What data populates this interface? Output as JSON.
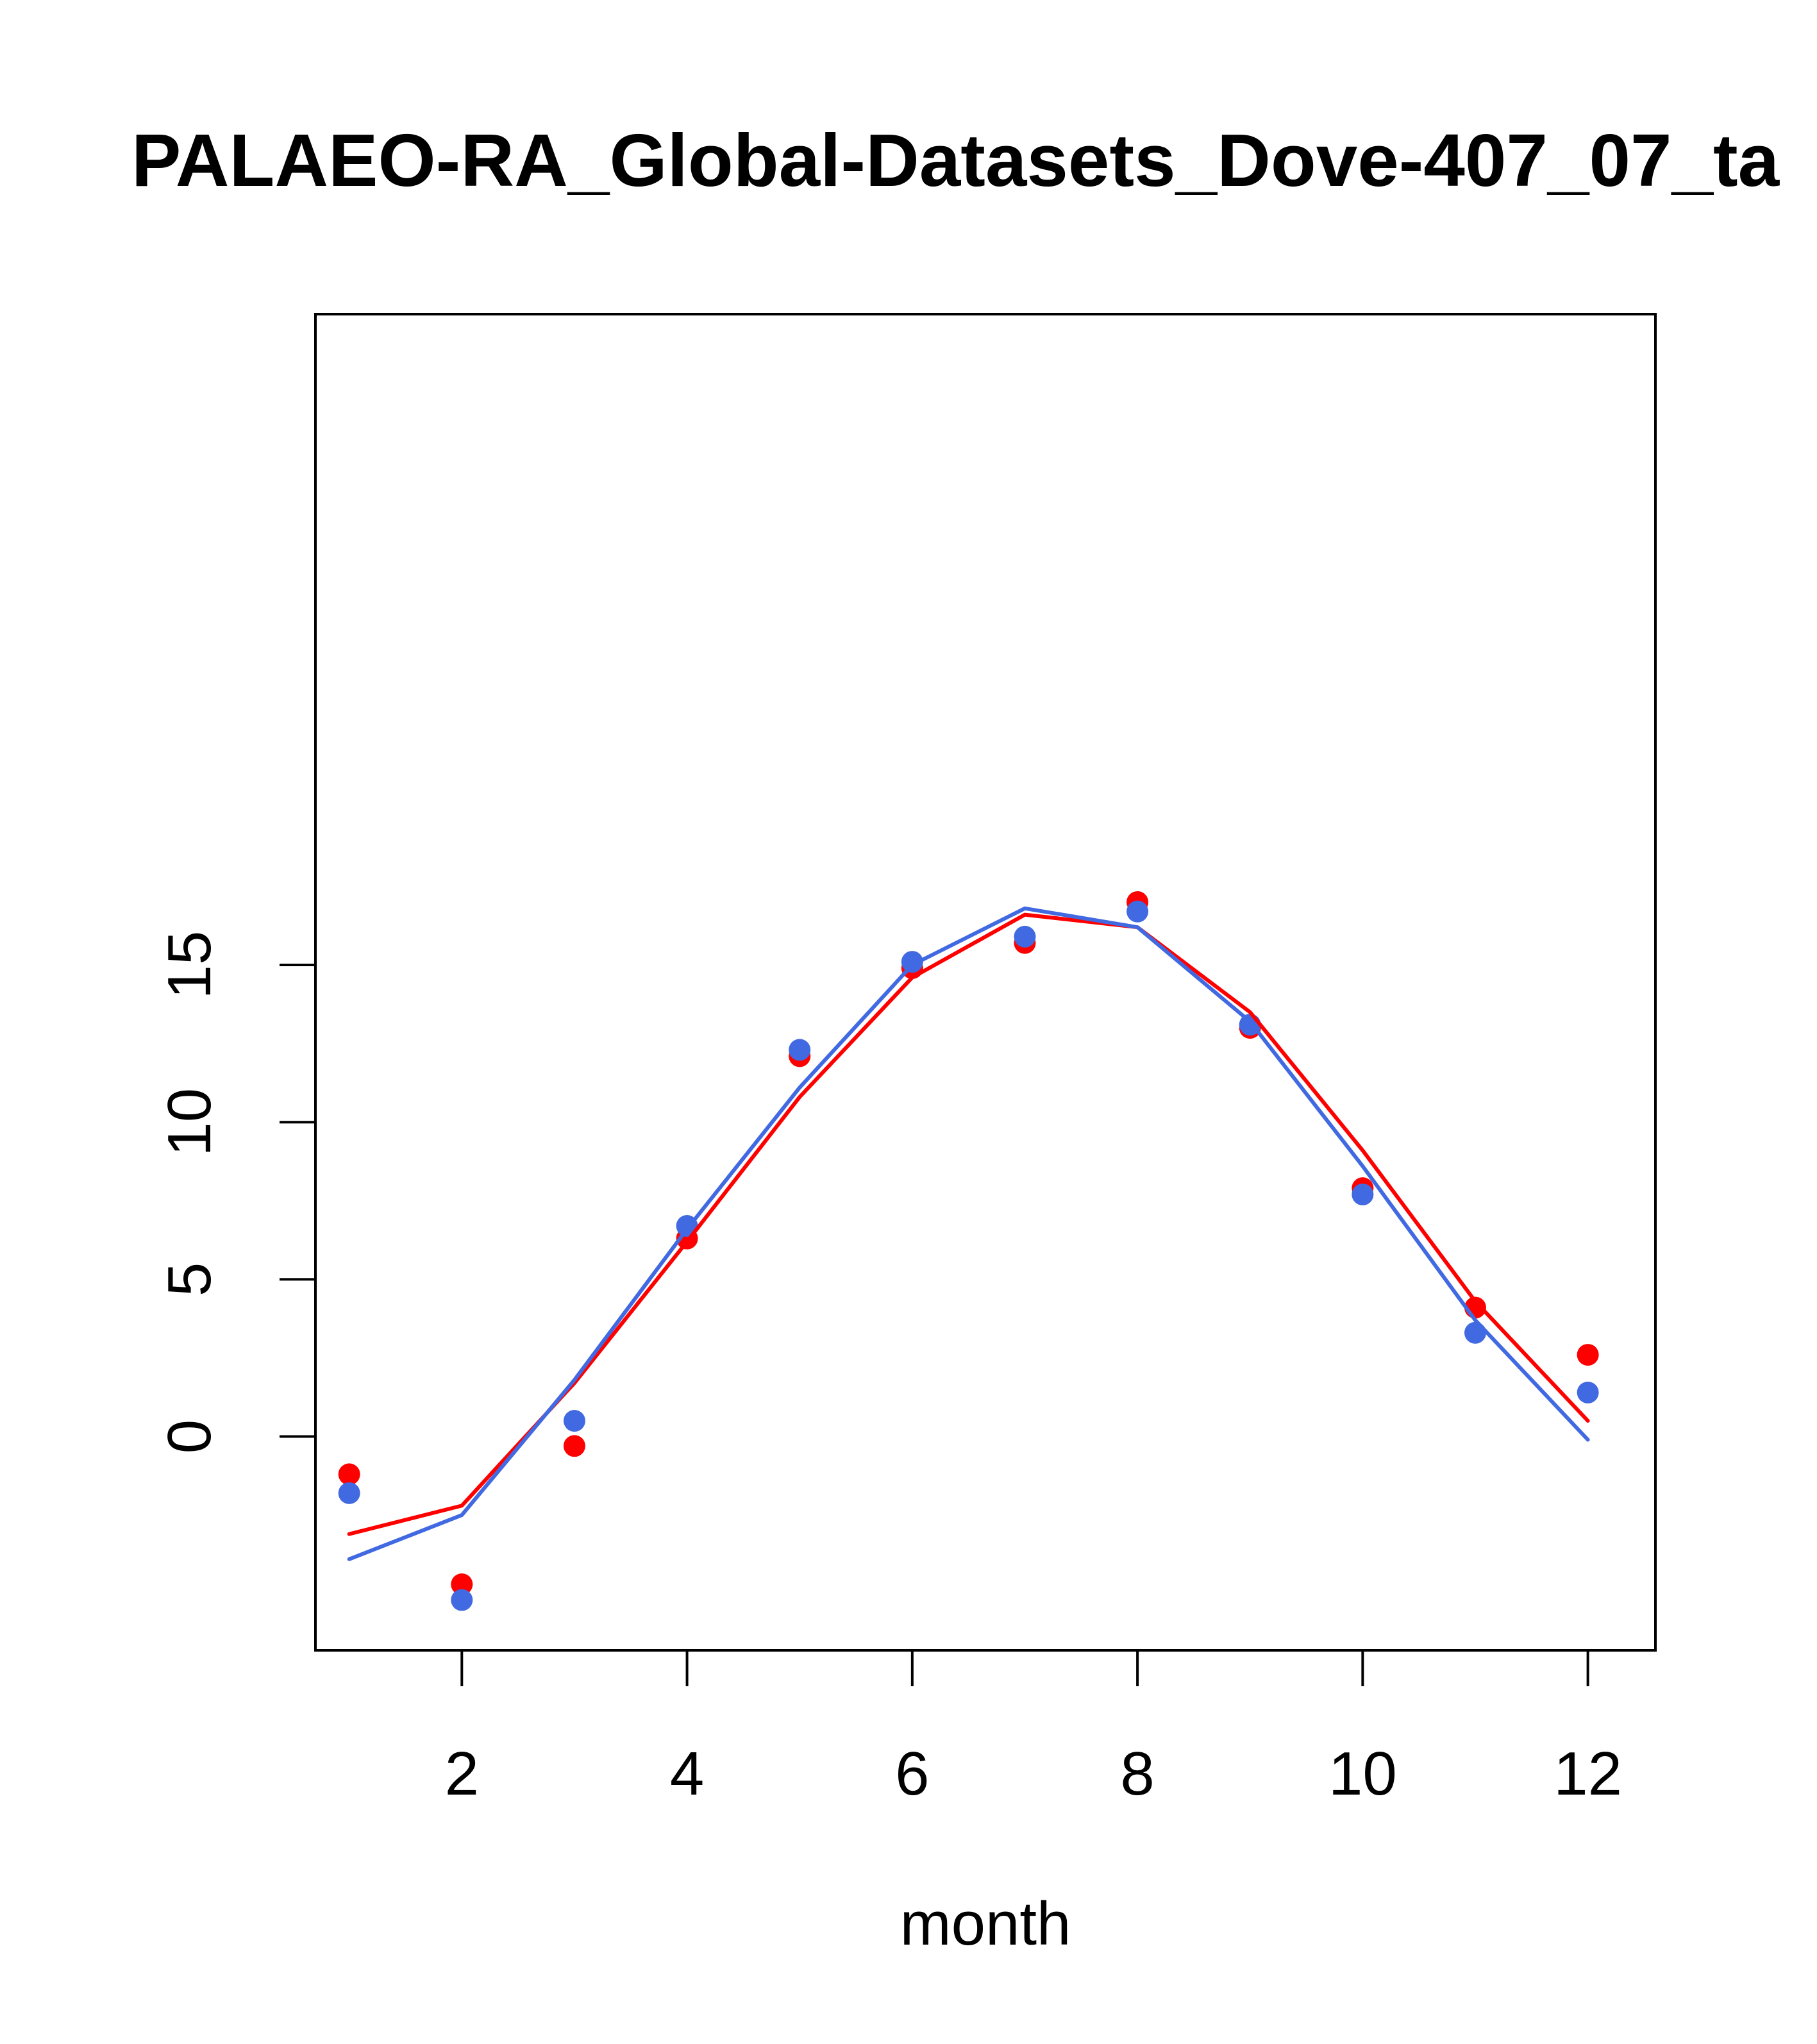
{
  "chart_data": {
    "type": "scatter",
    "title": "PALAEO-RA_Global-Datasets_Dove-407_07_ta",
    "xlabel": "month",
    "ylabel": "",
    "xlim": [
      0.7,
      12.6
    ],
    "ylim": [
      -6.8,
      35.7
    ],
    "xticks": [
      2,
      4,
      6,
      8,
      10,
      12
    ],
    "xtick_labels": [
      "2",
      "4",
      "6",
      "8",
      "10",
      "12"
    ],
    "yticks": [
      0,
      5,
      10,
      15
    ],
    "ytick_labels": [
      "0",
      "5",
      "10",
      "15"
    ],
    "grid": false,
    "colors": {
      "red": "#ff0000",
      "blue": "#4169e1",
      "axis": "#000000"
    },
    "series": [
      {
        "style": "points",
        "color": "#ff0000",
        "x": [
          1,
          2,
          3,
          4,
          5,
          6,
          7,
          8,
          9,
          10,
          11,
          12
        ],
        "y": [
          -1.2,
          -4.7,
          -0.3,
          6.3,
          12.1,
          14.9,
          15.7,
          17.0,
          13.0,
          7.9,
          4.1,
          2.6
        ]
      },
      {
        "style": "points",
        "color": "#4169e1",
        "x": [
          1,
          2,
          3,
          4,
          5,
          6,
          7,
          8,
          9,
          10,
          11,
          12
        ],
        "y": [
          -1.8,
          -5.2,
          0.5,
          6.7,
          12.3,
          15.1,
          15.9,
          16.7,
          13.1,
          7.7,
          3.3,
          1.4
        ]
      },
      {
        "style": "line",
        "color": "#ff0000",
        "x": [
          1,
          2,
          3,
          4,
          5,
          6,
          7,
          8,
          9,
          10,
          11,
          12
        ],
        "y": [
          -3.1,
          -2.2,
          1.7,
          6.2,
          10.8,
          14.6,
          16.6,
          16.2,
          13.5,
          9.1,
          4.3,
          0.5
        ]
      },
      {
        "style": "line",
        "color": "#4169e1",
        "x": [
          1,
          2,
          3,
          4,
          5,
          6,
          7,
          8,
          9,
          10,
          11,
          12
        ],
        "y": [
          -3.9,
          -2.5,
          1.8,
          6.6,
          11.1,
          15.0,
          16.8,
          16.2,
          13.2,
          8.6,
          3.7,
          -0.1
        ]
      }
    ]
  }
}
